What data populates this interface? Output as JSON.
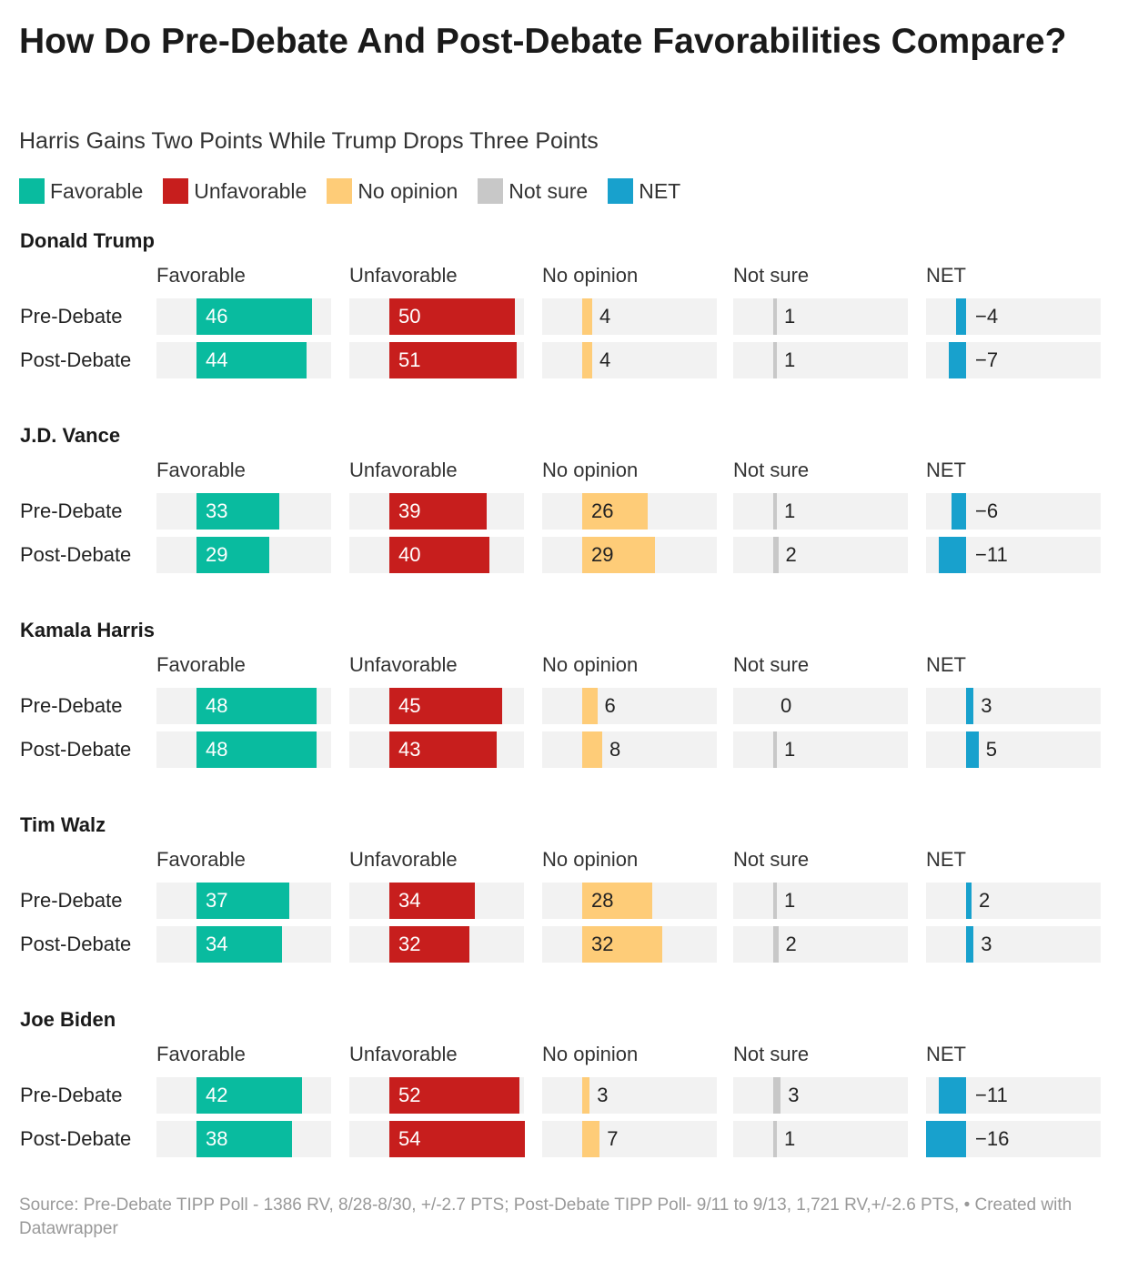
{
  "title": "How Do Pre-Debate And Post-Debate Favorabilities Compare?",
  "subtitle": "Harris Gains Two Points While Trump Drops Three Points",
  "legend": [
    {
      "label": "Favorable",
      "color": "#09bb9f"
    },
    {
      "label": "Unfavorable",
      "color": "#c71e1d"
    },
    {
      "label": "No opinion",
      "color": "#fecc78"
    },
    {
      "label": "Not sure",
      "color": "#c8c8c8"
    },
    {
      "label": "NET",
      "color": "#18a1cd"
    }
  ],
  "footer": "Source: Pre-Debate TIPP Poll - 1386 RV, 8/28-8/30, +/-2.7 PTS; Post-Debate TIPP Poll- 9/11 to 9/13, 1,721 RV,+/-2.6 PTS, • Created with Datawrapper",
  "chart_data": {
    "type": "bar",
    "columns": [
      "Favorable",
      "Unfavorable",
      "No opinion",
      "Not sure",
      "NET"
    ],
    "colors": [
      "#09bb9f",
      "#c71e1d",
      "#fecc78",
      "#c8c8c8",
      "#18a1cd"
    ],
    "rows": [
      "Pre-Debate",
      "Post-Debate"
    ],
    "groups": [
      {
        "name": "Donald Trump",
        "values": [
          [
            46,
            50,
            4,
            1,
            -4
          ],
          [
            44,
            51,
            4,
            1,
            -7
          ]
        ]
      },
      {
        "name": "J.D. Vance",
        "values": [
          [
            33,
            39,
            26,
            1,
            -6
          ],
          [
            29,
            40,
            29,
            2,
            -11
          ]
        ]
      },
      {
        "name": "Kamala Harris",
        "values": [
          [
            48,
            45,
            6,
            0,
            3
          ],
          [
            48,
            43,
            8,
            1,
            5
          ]
        ]
      },
      {
        "name": "Tim Walz",
        "values": [
          [
            37,
            34,
            28,
            1,
            2
          ],
          [
            34,
            32,
            32,
            2,
            3
          ]
        ]
      },
      {
        "name": "Joe Biden",
        "values": [
          [
            42,
            52,
            3,
            3,
            -11
          ],
          [
            38,
            54,
            7,
            1,
            -16
          ]
        ]
      }
    ]
  }
}
